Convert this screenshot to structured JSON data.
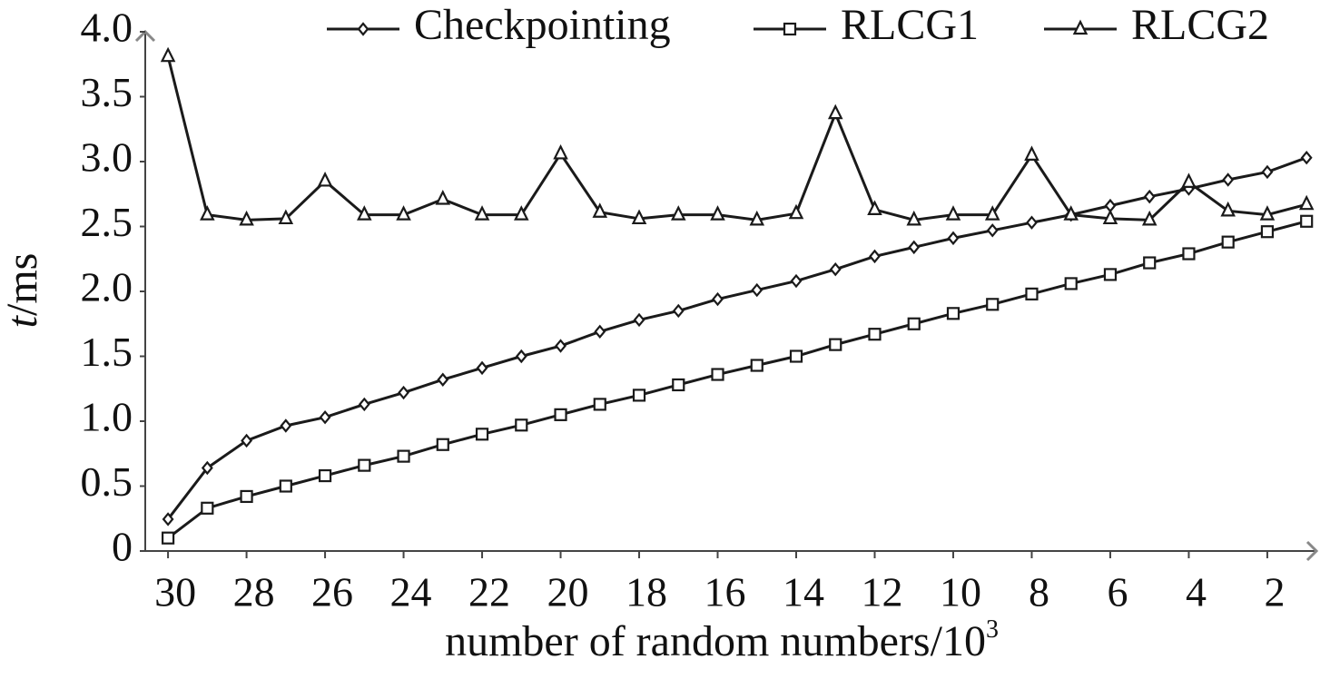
{
  "chart_data": {
    "type": "line",
    "x_label": "number of random numbers/10",
    "x_label_sup": "3",
    "y_label_italic": "t",
    "y_label": "/ms",
    "x": [
      30,
      29,
      28,
      27,
      26,
      25,
      24,
      23,
      22,
      21,
      20,
      19,
      18,
      17,
      16,
      15,
      14,
      13,
      12,
      11,
      10,
      9,
      8,
      7,
      6,
      5,
      4,
      3,
      2,
      1
    ],
    "xlim": [
      30.58,
      0.75
    ],
    "xticks": [
      30,
      28,
      26,
      24,
      22,
      20,
      18,
      16,
      14,
      12,
      10,
      8,
      6,
      4,
      2
    ],
    "ylim": [
      0,
      4
    ],
    "yticks": [
      0,
      0.5,
      {
        "value": 1,
        "label": "1.0"
      },
      1.5,
      {
        "value": 2,
        "label": "2.0"
      },
      2.5,
      {
        "value": 3,
        "label": "3.0"
      },
      3.5,
      {
        "value": 4,
        "label": "4.0"
      }
    ],
    "series": [
      {
        "name": "Checkpointing",
        "color": "#1a1a1a",
        "marker": "diamond",
        "values": [
          0.245,
          0.64,
          0.85,
          0.965,
          1.03,
          1.13,
          1.22,
          1.32,
          1.41,
          1.5,
          1.58,
          1.69,
          1.78,
          1.85,
          1.94,
          2.01,
          2.08,
          2.17,
          2.27,
          2.34,
          2.41,
          2.47,
          2.53,
          2.59,
          2.66,
          2.73,
          2.79,
          2.86,
          2.92,
          3.03
        ]
      },
      {
        "name": "RLCG1",
        "color": "#1a1a1a",
        "marker": "square",
        "values": [
          0.1,
          0.33,
          0.42,
          0.5,
          0.58,
          0.66,
          0.73,
          0.82,
          0.9,
          0.97,
          1.05,
          1.13,
          1.2,
          1.28,
          1.36,
          1.43,
          1.5,
          1.59,
          1.67,
          1.75,
          1.83,
          1.9,
          1.98,
          2.06,
          2.13,
          2.22,
          2.29,
          2.38,
          2.46,
          2.54
        ]
      },
      {
        "name": "RLCG2",
        "color": "#1a1a1a",
        "marker": "triangle",
        "values": [
          3.81,
          2.59,
          2.55,
          2.56,
          2.85,
          2.59,
          2.59,
          2.71,
          2.59,
          2.59,
          3.06,
          2.61,
          2.56,
          2.59,
          2.59,
          2.55,
          2.6,
          3.37,
          2.63,
          2.55,
          2.59,
          2.59,
          3.05,
          2.59,
          2.56,
          2.55,
          2.84,
          2.62,
          2.59,
          2.67
        ]
      }
    ]
  }
}
